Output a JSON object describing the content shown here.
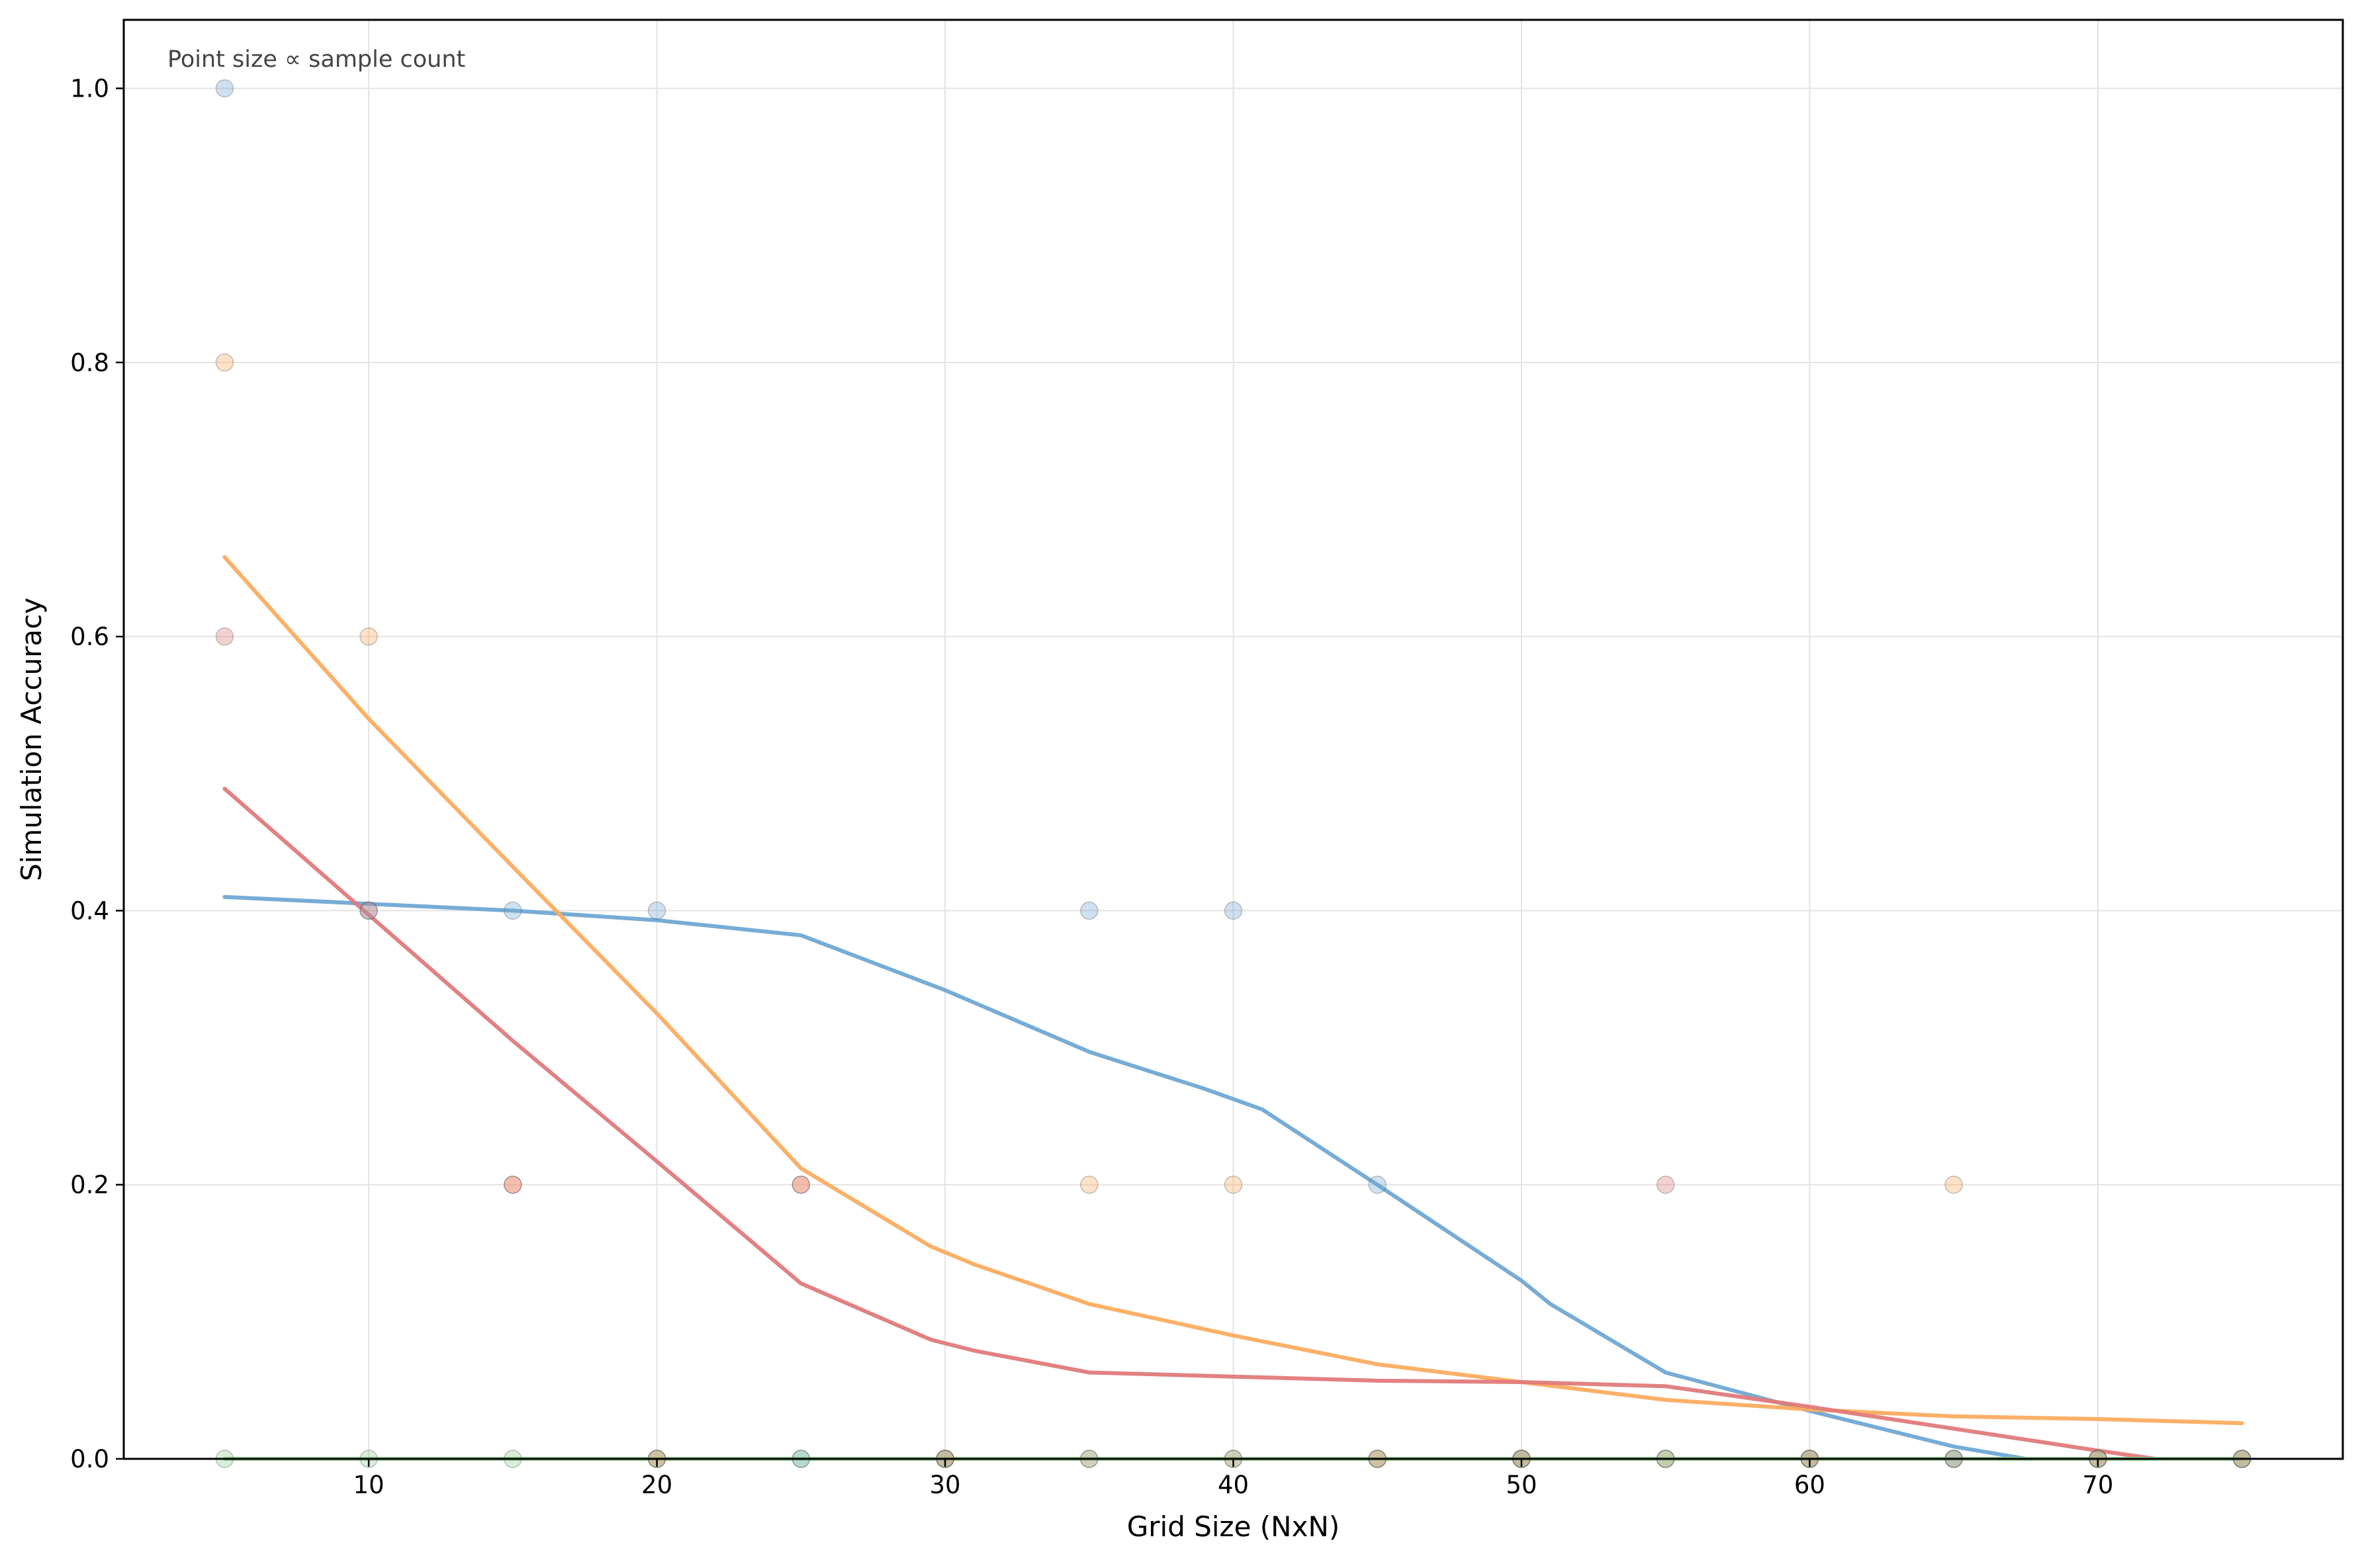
{
  "chart_data": {
    "type": "scatter",
    "title": "",
    "xlabel": "Grid Size (NxN)",
    "ylabel": "Simulation Accuracy",
    "annotation": "Point size ∝ sample count",
    "xlim": [
      1.5,
      78.5
    ],
    "ylim": [
      0,
      1.05
    ],
    "x_ticks": [
      10,
      20,
      30,
      40,
      50,
      60,
      70
    ],
    "y_ticks": [
      0.0,
      0.2,
      0.4,
      0.6,
      0.8,
      1.0
    ],
    "x_tick_labels": [
      "10",
      "20",
      "30",
      "40",
      "50",
      "60",
      "70"
    ],
    "y_tick_labels": [
      "0.0",
      "0.2",
      "0.4",
      "0.6",
      "0.8",
      "1.0"
    ],
    "grid": true,
    "series": [
      {
        "color": "#6fa8d4",
        "points": [
          [
            5,
            1.0
          ],
          [
            10,
            0.4
          ],
          [
            15,
            0.4
          ],
          [
            20,
            0.4
          ],
          [
            25,
            0.0
          ],
          [
            30,
            0.0
          ],
          [
            35,
            0.4
          ],
          [
            40,
            0.4
          ],
          [
            45,
            0.2
          ],
          [
            50,
            0.0
          ],
          [
            55,
            0.0
          ],
          [
            60,
            0.0
          ],
          [
            65,
            0.0
          ],
          [
            70,
            0.0
          ],
          [
            75,
            0.0
          ]
        ],
        "trend": [
          [
            5,
            0.41
          ],
          [
            10,
            0.405
          ],
          [
            15,
            0.4
          ],
          [
            20,
            0.393
          ],
          [
            25,
            0.382
          ],
          [
            30,
            0.342
          ],
          [
            35,
            0.297
          ],
          [
            39,
            0.27
          ],
          [
            41,
            0.255
          ],
          [
            45,
            0.2
          ],
          [
            50,
            0.13
          ],
          [
            51,
            0.113
          ],
          [
            55,
            0.063
          ],
          [
            60,
            0.035
          ],
          [
            65,
            0.009
          ],
          [
            67.5,
            0.0
          ]
        ]
      },
      {
        "color": "#fbac60",
        "points": [
          [
            5,
            0.8
          ],
          [
            10,
            0.6
          ],
          [
            15,
            0.2
          ],
          [
            20,
            0.0
          ],
          [
            25,
            0.2
          ],
          [
            30,
            0.0
          ],
          [
            35,
            0.2
          ],
          [
            40,
            0.2
          ],
          [
            45,
            0.0
          ],
          [
            50,
            0.0
          ],
          [
            55,
            0.0
          ],
          [
            60,
            0.0
          ],
          [
            65,
            0.2
          ],
          [
            70,
            0.0
          ],
          [
            75,
            0.0
          ]
        ],
        "trend": [
          [
            5,
            0.658
          ],
          [
            10,
            0.54
          ],
          [
            15,
            0.432
          ],
          [
            20,
            0.325
          ],
          [
            25,
            0.212
          ],
          [
            29.5,
            0.155
          ],
          [
            31,
            0.142
          ],
          [
            35,
            0.113
          ],
          [
            40,
            0.09
          ],
          [
            45,
            0.069
          ],
          [
            50,
            0.056
          ],
          [
            55,
            0.043
          ],
          [
            60,
            0.036
          ],
          [
            65,
            0.031
          ],
          [
            70,
            0.029
          ],
          [
            75,
            0.026
          ]
        ]
      },
      {
        "color": "#e07a7a",
        "points": [
          [
            5,
            0.6
          ],
          [
            10,
            0.4
          ],
          [
            15,
            0.2
          ],
          [
            20,
            0.0
          ],
          [
            25,
            0.2
          ],
          [
            30,
            0.0
          ],
          [
            35,
            0.0
          ],
          [
            40,
            0.0
          ],
          [
            45,
            0.0
          ],
          [
            50,
            0.0
          ],
          [
            55,
            0.2
          ],
          [
            60,
            0.0
          ],
          [
            65,
            0.0
          ],
          [
            70,
            0.0
          ],
          [
            75,
            0.0
          ]
        ],
        "trend": [
          [
            5,
            0.489
          ],
          [
            10,
            0.397
          ],
          [
            15,
            0.305
          ],
          [
            20,
            0.217
          ],
          [
            25,
            0.128
          ],
          [
            29.5,
            0.087
          ],
          [
            31,
            0.079
          ],
          [
            35,
            0.063
          ],
          [
            40,
            0.06
          ],
          [
            45,
            0.057
          ],
          [
            50,
            0.056
          ],
          [
            55,
            0.053
          ],
          [
            60,
            0.038
          ],
          [
            65,
            0.022
          ],
          [
            70,
            0.006
          ],
          [
            72,
            0.0
          ]
        ]
      },
      {
        "color": "#8fce8f",
        "points": [
          [
            5,
            0.0
          ],
          [
            10,
            0.0
          ],
          [
            15,
            0.0
          ],
          [
            20,
            0.0
          ],
          [
            25,
            0.0
          ],
          [
            30,
            0.0
          ],
          [
            35,
            0.0
          ],
          [
            40,
            0.0
          ],
          [
            45,
            0.0
          ],
          [
            50,
            0.0
          ],
          [
            55,
            0.0
          ],
          [
            60,
            0.0
          ],
          [
            65,
            0.0
          ],
          [
            70,
            0.0
          ],
          [
            75,
            0.0
          ]
        ],
        "trend": [
          [
            5,
            0.0
          ],
          [
            75,
            0.0
          ]
        ]
      }
    ]
  }
}
